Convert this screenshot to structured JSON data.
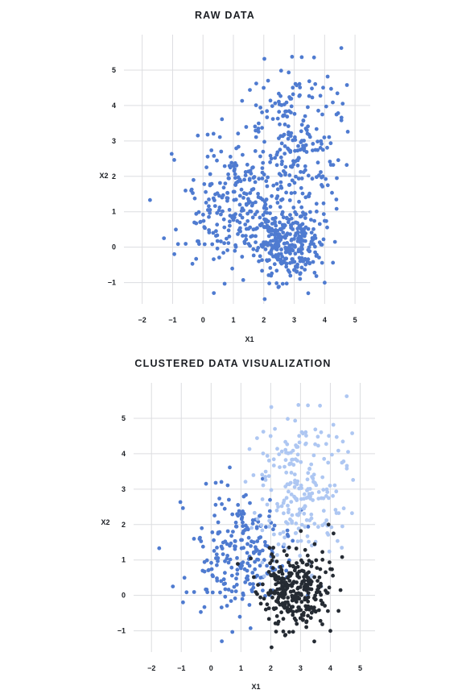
{
  "chart_data": [
    {
      "type": "scatter",
      "title": "RAW DATA",
      "xlabel": "X1",
      "ylabel": "X2",
      "xlim": [
        -2.6,
        5.5
      ],
      "ylim": [
        -1.6,
        6.0
      ],
      "xticks": [
        "−2",
        "−1",
        "0",
        "1",
        "2",
        "3",
        "4",
        "5"
      ],
      "xtick_values": [
        -2,
        -1,
        0,
        1,
        2,
        3,
        4,
        5
      ],
      "yticks": [
        "−1",
        "0",
        "1",
        "2",
        "3",
        "4",
        "5"
      ],
      "ytick_values": [
        -1,
        0,
        1,
        2,
        3,
        4,
        5
      ],
      "grid": true,
      "point_color": "#4f7bd0",
      "series": [
        {
          "color": "#4f7bd0",
          "clusters": [
            {
              "center": [
                2.8,
                0.1
              ],
              "spread": [
                0.55,
                0.55
              ],
              "n": 300
            },
            {
              "center": [
                3.0,
                3.0
              ],
              "spread": [
                0.75,
                1.0
              ],
              "n": 230
            },
            {
              "center": [
                0.8,
                1.2
              ],
              "spread": [
                0.95,
                0.9
              ],
              "n": 240
            }
          ]
        }
      ]
    },
    {
      "type": "scatter",
      "title": "CLUSTERED DATA VISUALIZATION",
      "xlabel": "X1",
      "ylabel": "X2",
      "xlim": [
        -2.6,
        5.5
      ],
      "ylim": [
        -1.6,
        6.0
      ],
      "xticks": [
        "−2",
        "−1",
        "0",
        "1",
        "2",
        "3",
        "4",
        "5"
      ],
      "xtick_values": [
        -2,
        -1,
        0,
        1,
        2,
        3,
        4,
        5
      ],
      "yticks": [
        "−1",
        "0",
        "1",
        "2",
        "3",
        "4",
        "5"
      ],
      "ytick_values": [
        -1,
        0,
        1,
        2,
        3,
        4,
        5
      ],
      "grid": true,
      "series": [
        {
          "color": "#4f7bd0",
          "cluster": {
            "center": [
              0.8,
              1.2
            ],
            "spread": [
              0.95,
              0.9
            ],
            "n": 240
          }
        },
        {
          "color": "#aec7f2",
          "cluster": {
            "center": [
              3.0,
              3.0
            ],
            "spread": [
              0.75,
              1.0
            ],
            "n": 230
          }
        },
        {
          "color": "#252b33",
          "cluster": {
            "center": [
              2.8,
              0.1
            ],
            "spread": [
              0.55,
              0.55
            ],
            "n": 300
          }
        }
      ]
    }
  ]
}
